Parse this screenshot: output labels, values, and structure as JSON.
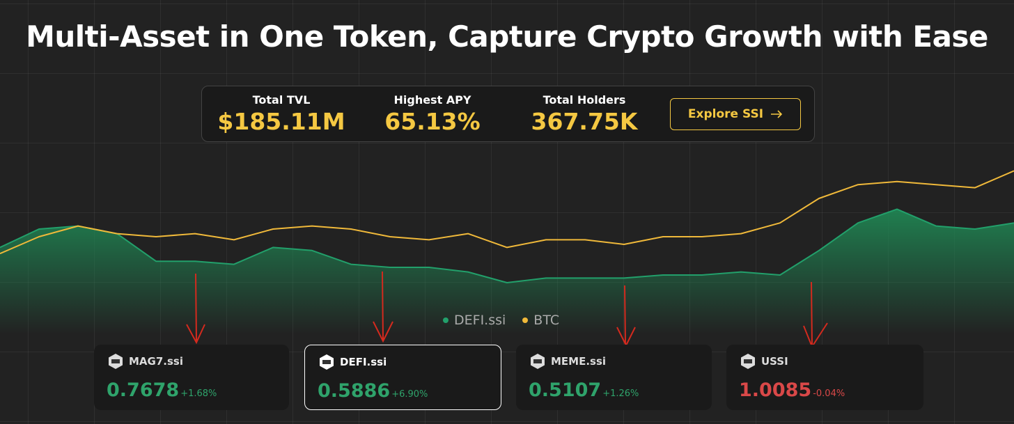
{
  "header": {
    "title": "Multi-Asset in One Token, Capture Crypto Growth with Ease"
  },
  "stats": [
    {
      "label": "Total TVL",
      "value": "$185.11M"
    },
    {
      "label": "Highest APY",
      "value": "65.13%"
    },
    {
      "label": "Total Holders",
      "value": "367.75K"
    }
  ],
  "button": {
    "label": "Explore SSI"
  },
  "chart_data": {
    "type": "line",
    "ylim": [
      0,
      100
    ],
    "series": [
      {
        "name": "DEFI.ssi",
        "color": "#22a06b",
        "values": [
          43,
          55,
          57,
          52,
          34,
          34,
          32,
          43,
          41,
          32,
          30,
          30,
          27,
          20,
          23,
          23,
          23,
          25,
          25,
          27,
          25,
          41,
          59,
          68,
          57,
          55,
          59
        ]
      },
      {
        "name": "BTC",
        "color": "#f0b93a",
        "values": [
          39,
          50,
          57,
          52,
          50,
          52,
          48,
          55,
          57,
          55,
          50,
          48,
          52,
          43,
          48,
          48,
          45,
          50,
          50,
          52,
          59,
          75,
          84,
          86,
          84,
          82,
          93
        ]
      }
    ]
  },
  "cards": [
    {
      "name": "MAG7.ssi",
      "value": "0.7678",
      "change": "+1.68%"
    },
    {
      "name": "DEFI.ssi",
      "value": "0.5886",
      "change": "+6.90%"
    },
    {
      "name": "MEME.ssi",
      "value": "0.5107",
      "change": "+1.26%"
    },
    {
      "name": "USSI",
      "value": "1.0085",
      "change": "-0.04%"
    }
  ]
}
